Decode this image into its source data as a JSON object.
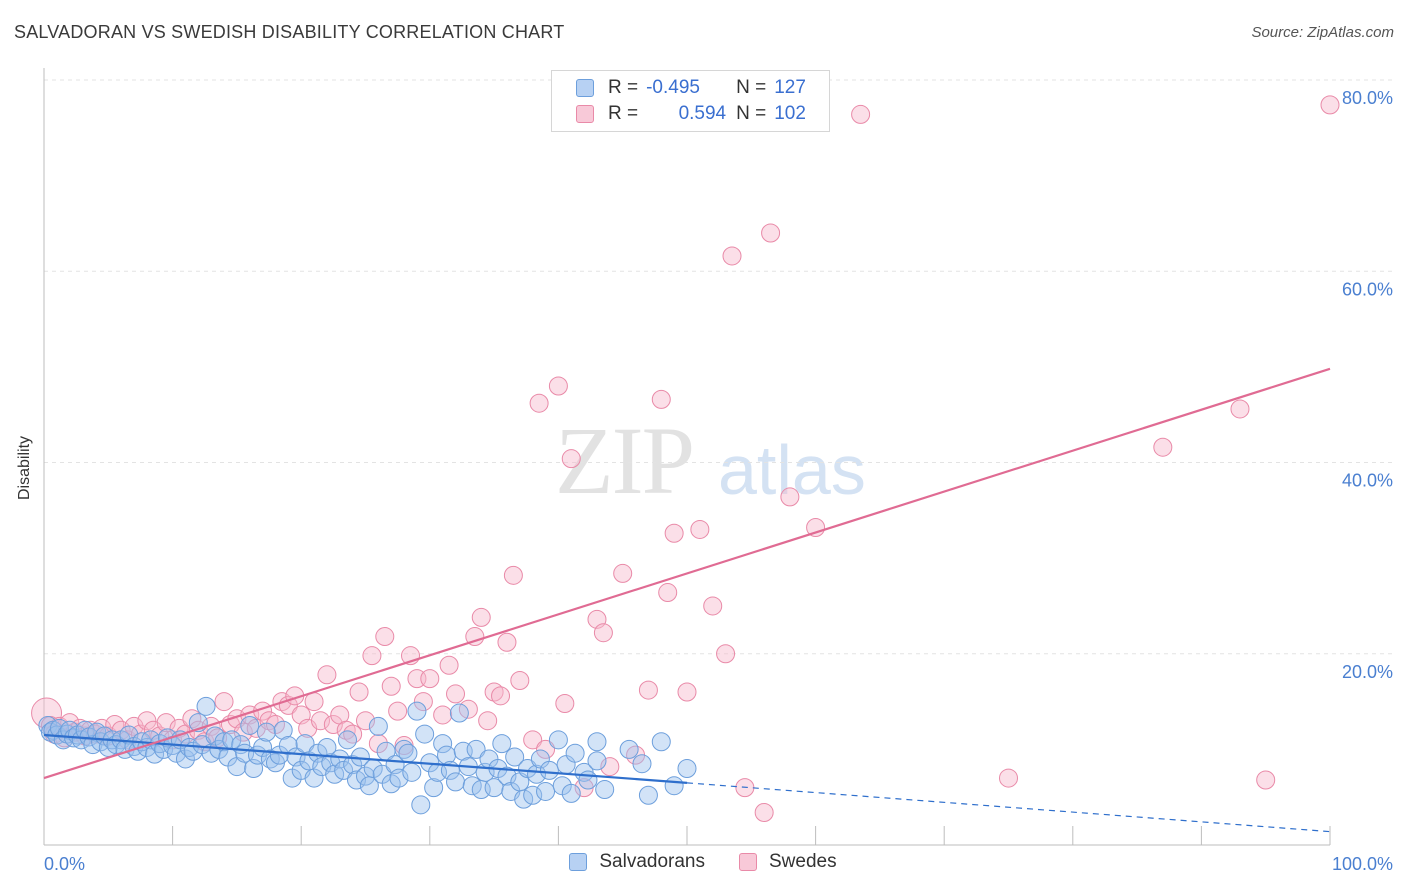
{
  "title": "SALVADORAN VS SWEDISH DISABILITY CORRELATION CHART",
  "source": "Source: ZipAtlas.com",
  "watermark": {
    "zip": "ZIP",
    "atlas": "atlas"
  },
  "legend_top": {
    "rows": [
      {
        "r_label": "R =",
        "r_value": "-0.495",
        "n_label": "N =",
        "n_value": "127"
      },
      {
        "r_label": "R =",
        "r_value": "0.594",
        "n_label": "N =",
        "n_value": "102"
      }
    ]
  },
  "legend_bottom": {
    "items": [
      "Salvadorans",
      "Swedes"
    ]
  },
  "colors": {
    "blue_fill": "#9cc1ee",
    "blue_stroke": "#6d9fdc",
    "blue_line": "#2f6fcc",
    "pink_fill": "#f6b9cc",
    "pink_stroke": "#e98aa8",
    "pink_line": "#e06b93",
    "tick": "#4a7fd0",
    "grid": "#e3e3e3"
  },
  "chart_data": {
    "type": "scatter",
    "title": "SALVADORAN VS SWEDISH DISABILITY CORRELATION CHART",
    "xlabel": "",
    "ylabel": "Disability",
    "xlim": [
      0,
      100
    ],
    "ylim": [
      0,
      80
    ],
    "x_tick_labels": [
      "0.0%",
      "100.0%"
    ],
    "y_ticks": [
      20,
      40,
      60,
      80
    ],
    "y_tick_labels": [
      "20.0%",
      "40.0%",
      "60.0%",
      "80.0%"
    ],
    "series": [
      {
        "name": "Salvadorans",
        "r": -0.495,
        "n": 127,
        "trend": {
          "x0": 0,
          "y0": 11.5,
          "x1": 50,
          "y1": 6.5,
          "x_end": 100,
          "y_end": 1.4
        },
        "points": [
          [
            0.3,
            12.5
          ],
          [
            0.5,
            11.8
          ],
          [
            0.7,
            12.0
          ],
          [
            1.0,
            11.5
          ],
          [
            1.2,
            12.2
          ],
          [
            1.5,
            11.0
          ],
          [
            1.8,
            11.6
          ],
          [
            2.0,
            12.0
          ],
          [
            2.3,
            11.2
          ],
          [
            2.6,
            11.5
          ],
          [
            2.9,
            11.0
          ],
          [
            3.2,
            12.0
          ],
          [
            3.5,
            11.3
          ],
          [
            3.8,
            10.5
          ],
          [
            4.1,
            11.8
          ],
          [
            4.4,
            10.8
          ],
          [
            4.7,
            11.4
          ],
          [
            5.0,
            10.2
          ],
          [
            5.3,
            11.0
          ],
          [
            5.6,
            10.5
          ],
          [
            6.0,
            11.0
          ],
          [
            6.3,
            10.0
          ],
          [
            6.6,
            11.5
          ],
          [
            7.0,
            10.3
          ],
          [
            7.3,
            9.8
          ],
          [
            7.6,
            10.8
          ],
          [
            8.0,
            10.2
          ],
          [
            8.3,
            11.0
          ],
          [
            8.6,
            9.5
          ],
          [
            9.0,
            10.6
          ],
          [
            9.3,
            10.0
          ],
          [
            9.6,
            11.2
          ],
          [
            10.0,
            10.4
          ],
          [
            10.3,
            9.6
          ],
          [
            10.6,
            11.0
          ],
          [
            11.0,
            9.0
          ],
          [
            11.3,
            10.2
          ],
          [
            11.6,
            9.8
          ],
          [
            12.0,
            12.8
          ],
          [
            12.3,
            10.5
          ],
          [
            12.6,
            14.5
          ],
          [
            13.0,
            9.6
          ],
          [
            13.3,
            11.4
          ],
          [
            13.6,
            10.0
          ],
          [
            14.0,
            10.8
          ],
          [
            14.3,
            9.2
          ],
          [
            14.6,
            11.0
          ],
          [
            15.0,
            8.2
          ],
          [
            15.3,
            10.5
          ],
          [
            15.6,
            9.6
          ],
          [
            16.0,
            12.5
          ],
          [
            16.3,
            8.0
          ],
          [
            16.6,
            9.4
          ],
          [
            17.0,
            10.2
          ],
          [
            17.3,
            11.8
          ],
          [
            17.6,
            9.0
          ],
          [
            18.0,
            8.6
          ],
          [
            18.3,
            9.4
          ],
          [
            18.6,
            12.0
          ],
          [
            19.0,
            10.4
          ],
          [
            19.3,
            7.0
          ],
          [
            19.6,
            9.2
          ],
          [
            20.0,
            7.8
          ],
          [
            20.3,
            10.6
          ],
          [
            20.6,
            8.8
          ],
          [
            21.0,
            7.0
          ],
          [
            21.3,
            9.6
          ],
          [
            21.6,
            8.2
          ],
          [
            22.0,
            10.2
          ],
          [
            22.3,
            8.6
          ],
          [
            22.6,
            7.4
          ],
          [
            23.0,
            9.0
          ],
          [
            23.3,
            7.8
          ],
          [
            23.6,
            11.0
          ],
          [
            24.0,
            8.4
          ],
          [
            24.3,
            6.8
          ],
          [
            24.6,
            9.2
          ],
          [
            25.0,
            7.2
          ],
          [
            25.3,
            6.2
          ],
          [
            25.6,
            8.0
          ],
          [
            26.0,
            12.4
          ],
          [
            26.3,
            7.4
          ],
          [
            26.6,
            9.8
          ],
          [
            27.0,
            6.4
          ],
          [
            27.3,
            8.4
          ],
          [
            27.6,
            7.0
          ],
          [
            28.0,
            10.0
          ],
          [
            28.3,
            9.6
          ],
          [
            28.6,
            7.6
          ],
          [
            29.0,
            14.0
          ],
          [
            29.3,
            4.2
          ],
          [
            29.6,
            11.6
          ],
          [
            30.0,
            8.6
          ],
          [
            30.3,
            6.0
          ],
          [
            30.6,
            7.6
          ],
          [
            31.0,
            10.6
          ],
          [
            31.3,
            9.4
          ],
          [
            31.6,
            7.8
          ],
          [
            32.0,
            6.6
          ],
          [
            32.3,
            13.8
          ],
          [
            32.6,
            9.8
          ],
          [
            33.0,
            8.2
          ],
          [
            33.3,
            6.2
          ],
          [
            33.6,
            10.0
          ],
          [
            34.0,
            5.8
          ],
          [
            34.3,
            7.6
          ],
          [
            34.6,
            9.0
          ],
          [
            35.0,
            6.0
          ],
          [
            35.3,
            8.0
          ],
          [
            35.6,
            10.6
          ],
          [
            36.0,
            7.2
          ],
          [
            36.3,
            5.6
          ],
          [
            36.6,
            9.2
          ],
          [
            37.0,
            6.6
          ],
          [
            37.3,
            4.8
          ],
          [
            37.6,
            8.0
          ],
          [
            38.0,
            5.2
          ],
          [
            38.3,
            7.4
          ],
          [
            38.6,
            9.0
          ],
          [
            39.0,
            5.6
          ],
          [
            39.3,
            7.8
          ],
          [
            40.0,
            11.0
          ],
          [
            40.3,
            6.2
          ],
          [
            40.6,
            8.4
          ],
          [
            41.0,
            5.4
          ],
          [
            41.3,
            9.6
          ],
          [
            42.0,
            7.6
          ],
          [
            42.3,
            6.8
          ],
          [
            43.0,
            10.8
          ],
          [
            43.6,
            5.8
          ],
          [
            43.0,
            8.8
          ],
          [
            47.0,
            5.2
          ],
          [
            48.0,
            10.8
          ],
          [
            49.0,
            6.2
          ],
          [
            50.0,
            8.0
          ],
          [
            45.5,
            10.0
          ],
          [
            46.5,
            8.5
          ]
        ]
      },
      {
        "name": "Swedes",
        "r": 0.594,
        "n": 102,
        "trend": {
          "x0": 0,
          "y0": 7.0,
          "x1": 100,
          "y1": 49.8
        },
        "points": [
          [
            0.2,
            13.8
          ],
          [
            0.5,
            12.5
          ],
          [
            0.8,
            11.6
          ],
          [
            1.2,
            12.4
          ],
          [
            1.6,
            11.2
          ],
          [
            2.0,
            12.8
          ],
          [
            2.4,
            11.8
          ],
          [
            2.8,
            12.2
          ],
          [
            3.2,
            11.4
          ],
          [
            3.6,
            12.0
          ],
          [
            4.0,
            11.6
          ],
          [
            4.5,
            12.2
          ],
          [
            5.0,
            11.4
          ],
          [
            5.5,
            12.6
          ],
          [
            6.0,
            12.0
          ],
          [
            6.5,
            11.0
          ],
          [
            7.0,
            12.4
          ],
          [
            7.5,
            11.6
          ],
          [
            8.0,
            13.0
          ],
          [
            8.5,
            12.0
          ],
          [
            9.0,
            11.4
          ],
          [
            9.5,
            12.8
          ],
          [
            10.0,
            11.0
          ],
          [
            10.5,
            12.2
          ],
          [
            11.0,
            11.6
          ],
          [
            11.5,
            13.2
          ],
          [
            12.0,
            12.0
          ],
          [
            12.5,
            10.8
          ],
          [
            13.0,
            12.4
          ],
          [
            13.5,
            11.2
          ],
          [
            14.0,
            15.0
          ],
          [
            14.5,
            12.6
          ],
          [
            15.0,
            13.2
          ],
          [
            15.5,
            11.8
          ],
          [
            16.0,
            13.6
          ],
          [
            16.5,
            12.2
          ],
          [
            17.0,
            14.0
          ],
          [
            17.5,
            13.0
          ],
          [
            18.0,
            12.6
          ],
          [
            18.5,
            15.0
          ],
          [
            19.0,
            14.6
          ],
          [
            19.5,
            15.6
          ],
          [
            20.0,
            13.6
          ],
          [
            20.5,
            12.2
          ],
          [
            21.0,
            15.0
          ],
          [
            21.5,
            13.0
          ],
          [
            22.0,
            17.8
          ],
          [
            22.5,
            12.6
          ],
          [
            23.0,
            13.6
          ],
          [
            23.5,
            12.0
          ],
          [
            24.0,
            11.6
          ],
          [
            24.5,
            16.0
          ],
          [
            25.0,
            13.0
          ],
          [
            25.5,
            19.8
          ],
          [
            26.0,
            10.6
          ],
          [
            26.5,
            21.8
          ],
          [
            27.0,
            16.6
          ],
          [
            27.5,
            14.0
          ],
          [
            28.0,
            10.4
          ],
          [
            28.5,
            19.8
          ],
          [
            29.0,
            17.4
          ],
          [
            29.5,
            15.0
          ],
          [
            30.0,
            17.4
          ],
          [
            31.0,
            13.6
          ],
          [
            31.5,
            18.8
          ],
          [
            32.0,
            15.8
          ],
          [
            33.0,
            14.2
          ],
          [
            33.5,
            21.8
          ],
          [
            34.0,
            23.8
          ],
          [
            34.5,
            13.0
          ],
          [
            35.0,
            16.0
          ],
          [
            35.5,
            15.6
          ],
          [
            36.0,
            21.2
          ],
          [
            36.5,
            28.2
          ],
          [
            37.0,
            17.2
          ],
          [
            38.0,
            11.0
          ],
          [
            38.5,
            46.2
          ],
          [
            39.0,
            10.0
          ],
          [
            40.0,
            48.0
          ],
          [
            40.5,
            14.8
          ],
          [
            41.0,
            40.4
          ],
          [
            42.0,
            6.0
          ],
          [
            43.0,
            23.6
          ],
          [
            43.5,
            22.2
          ],
          [
            44.0,
            8.2
          ],
          [
            45.0,
            28.4
          ],
          [
            46.0,
            9.4
          ],
          [
            47.0,
            16.2
          ],
          [
            48.0,
            46.6
          ],
          [
            48.5,
            26.4
          ],
          [
            49.0,
            32.6
          ],
          [
            50.0,
            16.0
          ],
          [
            51.0,
            33.0
          ],
          [
            52.0,
            25.0
          ],
          [
            53.0,
            20.0
          ],
          [
            54.5,
            6.0
          ],
          [
            56.0,
            3.4
          ],
          [
            58.0,
            36.4
          ],
          [
            60.0,
            33.2
          ],
          [
            63.5,
            76.4
          ],
          [
            75.0,
            7.0
          ],
          [
            87.0,
            41.6
          ],
          [
            93.0,
            45.6
          ],
          [
            95.0,
            6.8
          ],
          [
            100.0,
            77.4
          ],
          [
            56.5,
            64.0
          ],
          [
            53.5,
            61.6
          ]
        ]
      }
    ]
  }
}
